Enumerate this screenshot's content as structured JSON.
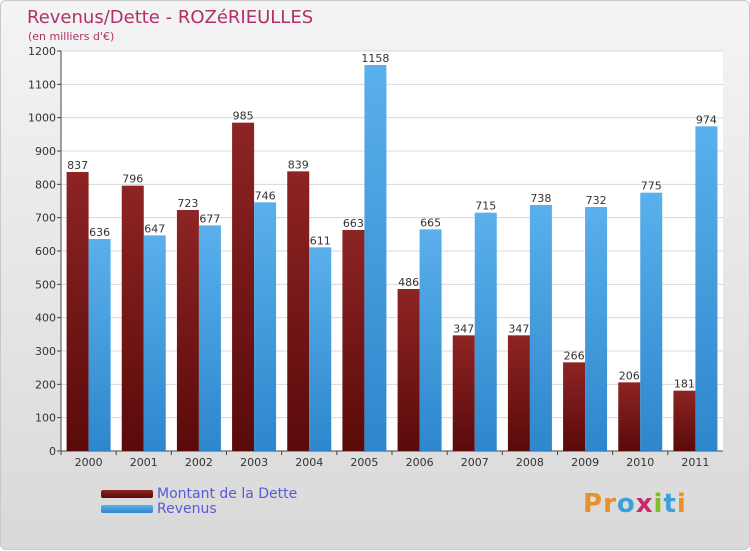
{
  "title": "Revenus/Dette - ROZéRIEULLES",
  "subtitle": "(en milliers d'€)",
  "logo": {
    "text": "Proxiti",
    "colors": [
      "#e8912a",
      "#e8912a",
      "#3aa0d8",
      "#c92a6c",
      "#7cbf2a",
      "#3aa0d8",
      "#e8912a"
    ]
  },
  "colors": {
    "dette": "#7a1a1a",
    "revenus": "#3a9ee0",
    "title": "#b0306a"
  },
  "chart_data": {
    "type": "bar",
    "title": "Revenus/Dette - ROZéRIEULLES",
    "ylabel": "(en milliers d'€)",
    "xlabel": "",
    "ylim": [
      0,
      1200
    ],
    "yticks": [
      0,
      100,
      200,
      300,
      400,
      500,
      600,
      700,
      800,
      900,
      1000,
      1100,
      1200
    ],
    "grid": true,
    "legend": "bottom-left",
    "categories": [
      "2000",
      "2001",
      "2002",
      "2003",
      "2004",
      "2005",
      "2006",
      "2007",
      "2008",
      "2009",
      "2010",
      "2011"
    ],
    "series": [
      {
        "name": "Montant de la Dette",
        "values": [
          837,
          796,
          723,
          985,
          839,
          663,
          486,
          347,
          347,
          266,
          206,
          181
        ]
      },
      {
        "name": "Revenus",
        "values": [
          636,
          647,
          677,
          746,
          611,
          1158,
          665,
          715,
          738,
          732,
          775,
          974
        ]
      }
    ]
  }
}
